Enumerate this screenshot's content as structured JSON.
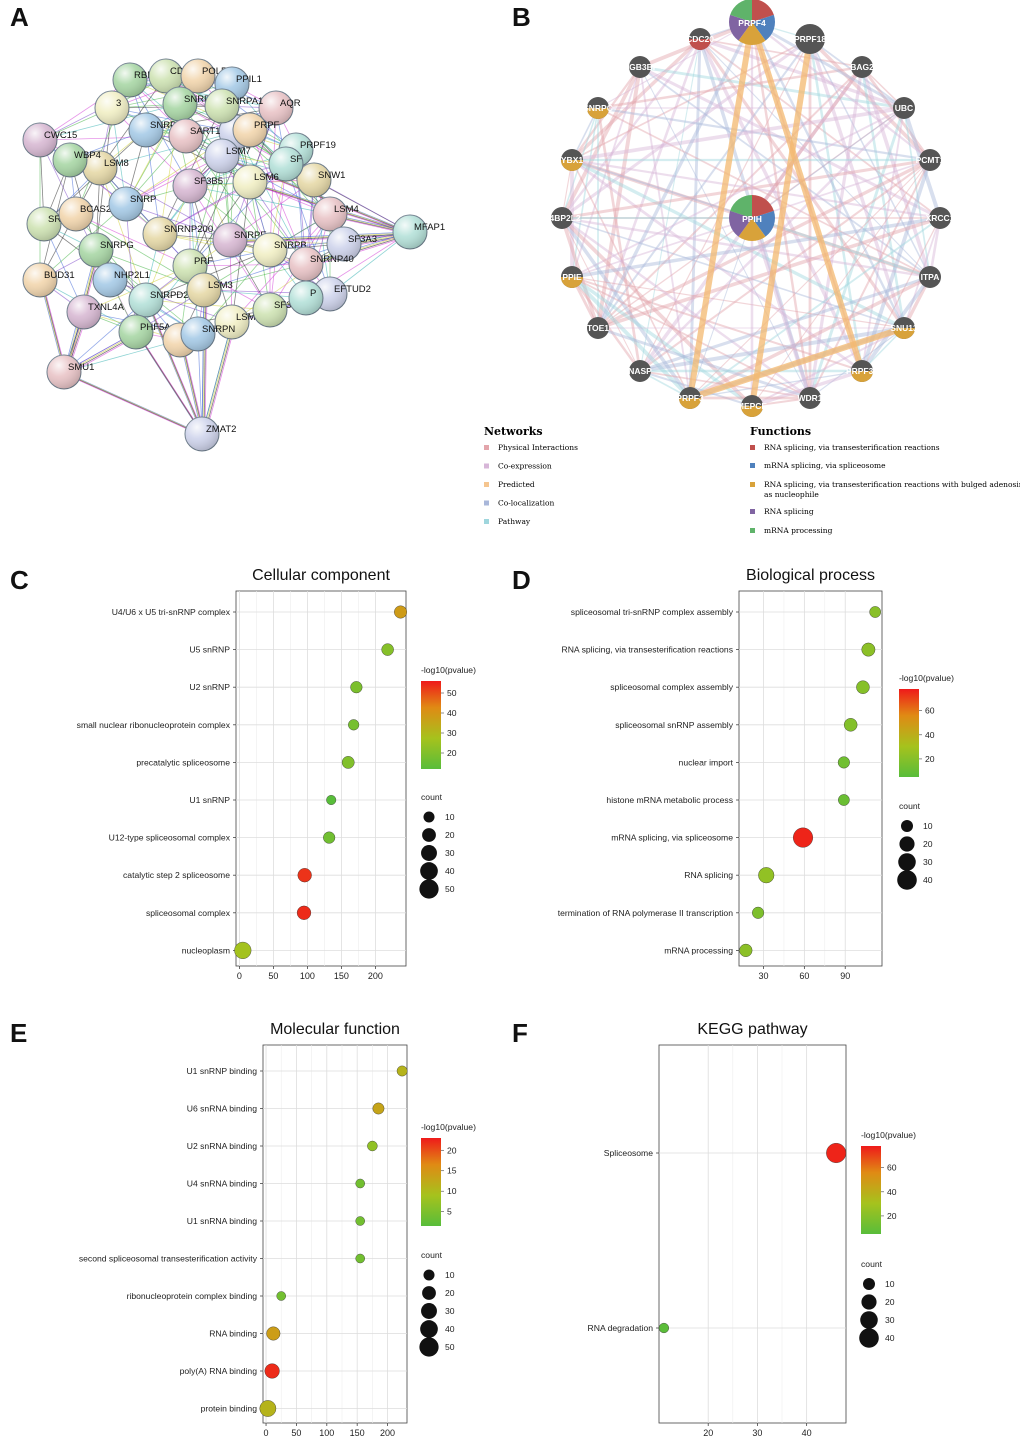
{
  "panels": {
    "A": {
      "letter": "A",
      "type": "protein-protein interaction network",
      "nodes": [
        "RBM22",
        "CDC40",
        "POLR2J",
        "PPIL1",
        "AQR",
        "PF",
        "PRPF19",
        "SNW1",
        "CWC15",
        "3",
        "SNRPB2",
        "SNRPA1",
        "PRPF",
        "SNRPA",
        "SART1",
        "LSM7",
        "SF",
        "LSM8",
        "SF3B5",
        "LSM6",
        "WBP4",
        "SRSF1",
        "BCAS2",
        "SNRP",
        "LSM4",
        "SF3A3",
        "MFAP1",
        "SNRNP200",
        "SNRPE",
        "SNRPB",
        "SNRPG",
        "PRF",
        "BUD31",
        "NHP2L1",
        "SNRNP40",
        "EFTUD2",
        "SNRPD2",
        "LSM3",
        "TXNL4A",
        "LSM2",
        "PHF5A",
        "SF3B3",
        "PRPF6",
        "SNRPN",
        "SMU1",
        "ZMAT2",
        "P"
      ]
    },
    "B": {
      "letter": "B",
      "type": "GeneMANIA network",
      "center_nodes": [
        "PRPF4",
        "PPIH"
      ],
      "ring_nodes": [
        "CDC20",
        "PRPF18",
        "ITGB3BP",
        "BAG2",
        "SNRPC",
        "UBC",
        "YBX1",
        "PCMT1",
        "N4BP2L2",
        "XRCC1",
        "PPIE",
        "ITPA",
        "TOE1",
        "SNU13",
        "NASP",
        "PRPF31",
        "PRPF3",
        "MEPCE",
        "WDR1"
      ],
      "networks_title": "Networks",
      "networks": [
        {
          "label": "Physical Interactions",
          "color": "#e3a5ab"
        },
        {
          "label": "Co-expression",
          "color": "#d7b6d8"
        },
        {
          "label": "Predicted",
          "color": "#f5c58f"
        },
        {
          "label": "Co-localization",
          "color": "#a9b7da"
        },
        {
          "label": "Pathway",
          "color": "#9fd6dd"
        }
      ],
      "functions_title": "Functions",
      "functions": [
        {
          "label": "RNA splicing, via transesterification reactions",
          "color": "#c0504d"
        },
        {
          "label": "mRNA splicing, via spliceosome",
          "color": "#4f81bd"
        },
        {
          "label": "RNA splicing, via transesterification reactions with bulged adenosine",
          "label2": "as nucleophile",
          "color": "#d8a23a"
        },
        {
          "label": "RNA splicing",
          "color": "#8064a2"
        },
        {
          "label": "mRNA processing",
          "color": "#5fb36a"
        }
      ]
    },
    "C": {
      "letter": "C"
    },
    "D": {
      "letter": "D"
    },
    "E": {
      "letter": "E"
    },
    "F": {
      "letter": "F"
    }
  },
  "chart_data": [
    {
      "panel": "C",
      "type": "scatter",
      "title": "Cellular component",
      "categories": [
        "U4/U6 x U5 tri-snRNP complex",
        "U5 snRNP",
        "U2 snRNP",
        "small nuclear ribonucleoprotein complex",
        "precatalytic spliceosome",
        "U1 snRNP",
        "U12-type spliceosomal complex",
        "catalytic step 2 spliceosome",
        "spliceosomal complex",
        "nucleoplasm"
      ],
      "x": [
        237,
        218,
        172,
        168,
        160,
        135,
        132,
        96,
        95,
        5
      ],
      "count": [
        15,
        13,
        12,
        9,
        14,
        6,
        12,
        20,
        20,
        34
      ],
      "pvalue": [
        38,
        21,
        19,
        18,
        20,
        12,
        17,
        53,
        54,
        27
      ],
      "xlim": [
        -5,
        245
      ],
      "xticks": [
        0,
        50,
        100,
        150,
        200
      ],
      "color_title": "-log10(pvalue)",
      "color_range": [
        12,
        56
      ],
      "color_ticks": [
        20,
        30,
        40,
        50
      ],
      "size_title": "count",
      "size_legend": [
        10,
        20,
        30,
        40,
        50
      ]
    },
    {
      "panel": "D",
      "type": "scatter",
      "title": "Biological process",
      "categories": [
        "spliceosomal tri-snRNP complex assembly",
        "RNA splicing, via transesterification reactions",
        "spliceosomal complex assembly",
        "spliceosomal snRNP assembly",
        "nuclear import",
        "histone mRNA metabolic process",
        "mRNA splicing, via spliceosome",
        "RNA splicing",
        "termination of RNA polymerase II transcription",
        "mRNA processing"
      ],
      "x": [
        112,
        107,
        103,
        94,
        89,
        89,
        59,
        32,
        26,
        17
      ],
      "count": [
        8,
        14,
        13,
        13,
        9,
        8,
        40,
        22,
        9,
        12
      ],
      "pvalue": [
        21,
        22,
        20,
        19,
        13,
        11,
        76,
        24,
        17,
        22
      ],
      "xlim": [
        12,
        117
      ],
      "xticks": [
        30,
        60,
        90
      ],
      "color_title": "-log10(pvalue)",
      "color_range": [
        5,
        78
      ],
      "color_ticks": [
        20,
        40,
        60
      ],
      "size_title": "count",
      "size_legend": [
        10,
        20,
        30,
        40
      ]
    },
    {
      "panel": "E",
      "type": "scatter",
      "title": "Molecular function",
      "categories": [
        "U1 snRNP binding",
        "U6 snRNA binding",
        "U2 snRNA binding",
        "U4 snRNA binding",
        "U1 snRNA binding",
        "second spliceosomal transesterification activity",
        "ribonucleoprotein complex binding",
        "RNA binding",
        "poly(A) RNA binding",
        "protein binding"
      ],
      "x": [
        224,
        185,
        175,
        155,
        155,
        155,
        25,
        12,
        10,
        3
      ],
      "count": [
        8,
        11,
        7,
        5,
        5,
        5,
        5,
        19,
        24,
        32
      ],
      "pvalue": [
        11,
        13,
        7,
        4,
        4,
        4,
        4,
        14,
        22,
        11
      ],
      "xlim": [
        -5,
        232
      ],
      "xticks": [
        0,
        50,
        100,
        150,
        200
      ],
      "color_title": "-log10(pvalue)",
      "color_range": [
        1.5,
        23
      ],
      "color_ticks": [
        5,
        10,
        15,
        20
      ],
      "size_title": "count",
      "size_legend": [
        10,
        20,
        30,
        40,
        50
      ]
    },
    {
      "panel": "F",
      "type": "scatter",
      "title": "KEGG pathway",
      "categories": [
        "Spliceosome",
        "RNA degradation"
      ],
      "x": [
        46,
        11
      ],
      "count": [
        40,
        5
      ],
      "pvalue": [
        76,
        6
      ],
      "xlim": [
        10,
        48
      ],
      "xticks": [
        20,
        30,
        40
      ],
      "color_title": "-log10(pvalue)",
      "color_range": [
        5,
        78
      ],
      "color_ticks": [
        20,
        40,
        60
      ],
      "size_title": "count",
      "size_legend": [
        10,
        20,
        30,
        40
      ]
    }
  ]
}
